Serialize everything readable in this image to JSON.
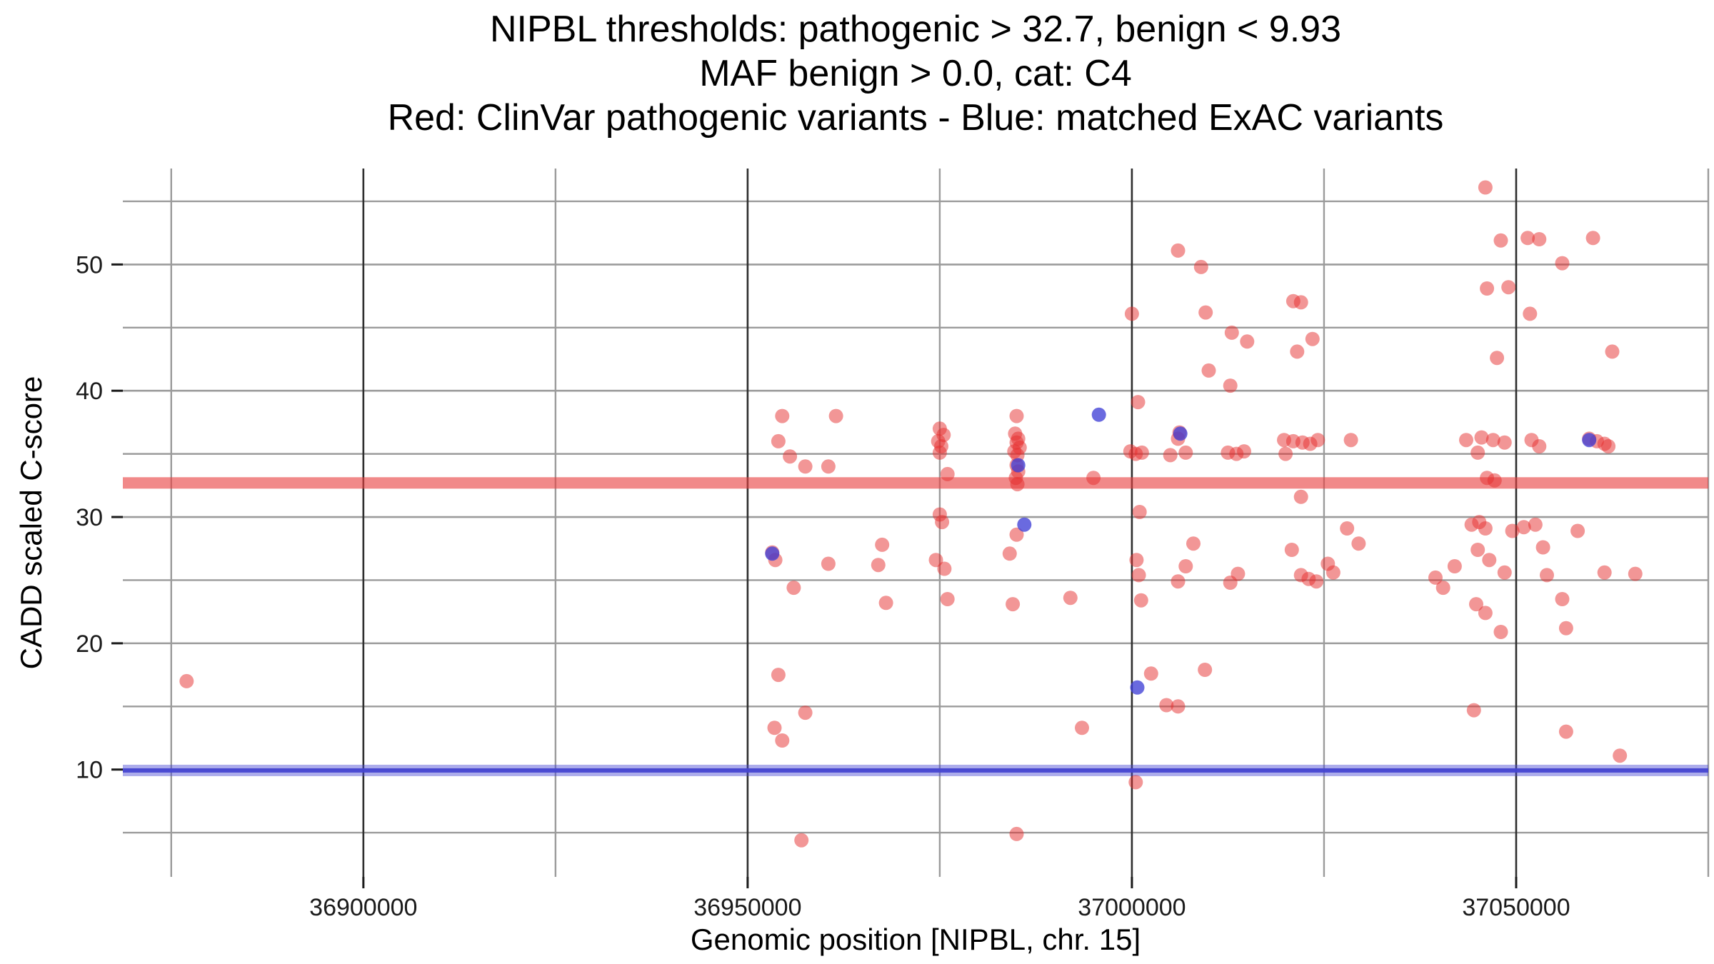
{
  "title": {
    "line1": "NIPBL thresholds: pathogenic > 32.7, benign < 9.93",
    "line2": "MAF benign > 0.0, cat: C4",
    "line3": "Red: ClinVar pathogenic variants - Blue: matched ExAC variants"
  },
  "chart_data": {
    "type": "scatter",
    "title": "NIPBL thresholds: pathogenic > 32.7, benign < 9.93",
    "subtitle": "MAF benign > 0.0, cat: C4",
    "caption": "Red: ClinVar pathogenic variants - Blue: matched ExAC variants",
    "xlabel": "Genomic position [NIPBL, chr. 15]",
    "ylabel": "CADD scaled C-score",
    "xlim": [
      36868700,
      37075000
    ],
    "ylim": [
      1.5,
      57.6
    ],
    "x_major_ticks": [
      36900000,
      36950000,
      37000000,
      37050000
    ],
    "x_tick_labels": [
      "36900000",
      "36950000",
      "37000000",
      "37050000"
    ],
    "x_minor_ticks": [
      36875000,
      36925000,
      36975000,
      37025000,
      37075000
    ],
    "y_major_ticks": [
      10,
      20,
      30,
      40,
      50
    ],
    "y_tick_labels": [
      "10",
      "20",
      "30",
      "40",
      "50"
    ],
    "y_minor_ticks": [
      5,
      15,
      25,
      35,
      45,
      55
    ],
    "grid": true,
    "legend": "none",
    "thresholds": {
      "pathogenic": 32.7,
      "benign": 9.93,
      "pathogenic_color": "#e84040",
      "benign_color": "#4646d2"
    },
    "series": [
      {
        "name": "ClinVar pathogenic variants",
        "color": "#e62e2e",
        "alpha": 0.5,
        "point_name": "clinvar-pathogenic-point",
        "points": [
          [
            36877000,
            17
          ],
          [
            36954500,
            38
          ],
          [
            36961500,
            38
          ],
          [
            36954000,
            36
          ],
          [
            36955500,
            34.8
          ],
          [
            36957500,
            34
          ],
          [
            36960500,
            34
          ],
          [
            36953200,
            27.2
          ],
          [
            36953600,
            26.6
          ],
          [
            36956000,
            24.4
          ],
          [
            36960500,
            26.3
          ],
          [
            36954000,
            17.5
          ],
          [
            36957500,
            14.5
          ],
          [
            36953500,
            13.3
          ],
          [
            36954500,
            12.3
          ],
          [
            36957000,
            4.4
          ],
          [
            36967500,
            27.8
          ],
          [
            36967000,
            26.2
          ],
          [
            36968000,
            23.2
          ],
          [
            36975000,
            37
          ],
          [
            36975500,
            36.5
          ],
          [
            36974800,
            36
          ],
          [
            36975200,
            35.6
          ],
          [
            36975000,
            35.1
          ],
          [
            36976000,
            33.4
          ],
          [
            36975000,
            30.2
          ],
          [
            36975300,
            29.6
          ],
          [
            36974500,
            26.6
          ],
          [
            36975600,
            25.9
          ],
          [
            36976000,
            23.5
          ],
          [
            36985000,
            38
          ],
          [
            36984800,
            36.6
          ],
          [
            36985200,
            36.2
          ],
          [
            36985000,
            35.9
          ],
          [
            36985400,
            35.5
          ],
          [
            36984700,
            35.2
          ],
          [
            36985100,
            34.9
          ],
          [
            36985000,
            34.1
          ],
          [
            36985200,
            33.6
          ],
          [
            36984900,
            33.1
          ],
          [
            36985100,
            32.6
          ],
          [
            36985000,
            28.6
          ],
          [
            36984100,
            27.1
          ],
          [
            36984500,
            23.1
          ],
          [
            36985000,
            4.9
          ],
          [
            36995000,
            33.1
          ],
          [
            36992000,
            23.6
          ],
          [
            36993500,
            13.3
          ],
          [
            37000000,
            46.1
          ],
          [
            37000800,
            39.1
          ],
          [
            36999800,
            35.2
          ],
          [
            37000500,
            35
          ],
          [
            37001300,
            35.1
          ],
          [
            37001000,
            30.4
          ],
          [
            37000600,
            26.6
          ],
          [
            37000900,
            25.4
          ],
          [
            37001200,
            23.4
          ],
          [
            37002500,
            17.6
          ],
          [
            37000500,
            9
          ],
          [
            37006000,
            51.1
          ],
          [
            37009000,
            49.8
          ],
          [
            37009600,
            46.2
          ],
          [
            37010000,
            41.6
          ],
          [
            37006200,
            36.7
          ],
          [
            37006000,
            36.2
          ],
          [
            37007000,
            35.1
          ],
          [
            37005000,
            34.9
          ],
          [
            37008000,
            27.9
          ],
          [
            37007000,
            26.1
          ],
          [
            37006000,
            24.9
          ],
          [
            37004500,
            15.1
          ],
          [
            37006000,
            15
          ],
          [
            37009500,
            17.9
          ],
          [
            37013000,
            44.6
          ],
          [
            37015000,
            43.9
          ],
          [
            37012800,
            40.4
          ],
          [
            37012500,
            35.1
          ],
          [
            37013600,
            35
          ],
          [
            37014600,
            35.2
          ],
          [
            37013800,
            25.5
          ],
          [
            37012800,
            24.8
          ],
          [
            37021000,
            47.1
          ],
          [
            37022000,
            47
          ],
          [
            37021500,
            43.1
          ],
          [
            37023500,
            44.1
          ],
          [
            37019800,
            36.1
          ],
          [
            37021000,
            36
          ],
          [
            37022200,
            35.9
          ],
          [
            37023200,
            35.8
          ],
          [
            37024200,
            36.1
          ],
          [
            37020000,
            35
          ],
          [
            37022000,
            31.6
          ],
          [
            37020800,
            27.4
          ],
          [
            37022000,
            25.4
          ],
          [
            37023000,
            25.1
          ],
          [
            37024000,
            24.9
          ],
          [
            37025500,
            26.3
          ],
          [
            37026200,
            25.6
          ],
          [
            37028500,
            36.1
          ],
          [
            37028000,
            29.1
          ],
          [
            37029500,
            27.9
          ],
          [
            37039500,
            25.2
          ],
          [
            37040500,
            24.4
          ],
          [
            37042000,
            26.1
          ],
          [
            37043500,
            36.1
          ],
          [
            37044500,
            14.7
          ],
          [
            37046000,
            56.1
          ],
          [
            37048000,
            51.9
          ],
          [
            37046200,
            48.1
          ],
          [
            37049000,
            48.2
          ],
          [
            37047500,
            42.6
          ],
          [
            37045500,
            36.3
          ],
          [
            37047000,
            36.1
          ],
          [
            37048500,
            35.9
          ],
          [
            37045000,
            35.1
          ],
          [
            37046200,
            33.1
          ],
          [
            37047200,
            32.9
          ],
          [
            37044200,
            29.4
          ],
          [
            37045200,
            29.6
          ],
          [
            37046000,
            29.1
          ],
          [
            37045000,
            27.4
          ],
          [
            37046500,
            26.6
          ],
          [
            37044800,
            23.1
          ],
          [
            37046000,
            22.4
          ],
          [
            37048000,
            20.9
          ],
          [
            37048500,
            25.6
          ],
          [
            37049500,
            28.9
          ],
          [
            37051000,
            29.2
          ],
          [
            37051500,
            52.1
          ],
          [
            37053000,
            52
          ],
          [
            37051800,
            46.1
          ],
          [
            37056000,
            50.1
          ],
          [
            37052000,
            36.1
          ],
          [
            37053000,
            35.6
          ],
          [
            37052500,
            29.4
          ],
          [
            37053500,
            27.6
          ],
          [
            37054000,
            25.4
          ],
          [
            37056000,
            23.5
          ],
          [
            37056500,
            21.2
          ],
          [
            37056500,
            13
          ],
          [
            37060000,
            52.1
          ],
          [
            37059500,
            36.2
          ],
          [
            37060500,
            36
          ],
          [
            37061500,
            35.8
          ],
          [
            37058000,
            28.9
          ],
          [
            37062500,
            43.1
          ],
          [
            37062000,
            35.6
          ],
          [
            37061500,
            25.6
          ],
          [
            37065500,
            25.5
          ],
          [
            37063500,
            11.1
          ]
        ]
      },
      {
        "name": "matched ExAC variants",
        "color": "#4040d6",
        "alpha": 0.78,
        "point_name": "exac-matched-point",
        "points": [
          [
            36953200,
            27.1
          ],
          [
            36985200,
            34.1
          ],
          [
            36986000,
            29.4
          ],
          [
            36995700,
            38.1
          ],
          [
            37000700,
            16.5
          ],
          [
            37006300,
            36.6
          ],
          [
            37059500,
            36.1
          ]
        ]
      }
    ]
  },
  "style_colors": {
    "grid_minor": "#9b9b9b",
    "grid_major_h": "#9b9b9b",
    "grid_major_v": "#2e2e2e",
    "tick": "#1a1a1a",
    "pathogenic_band": "#e84040",
    "benign_band": "#4646d2"
  }
}
